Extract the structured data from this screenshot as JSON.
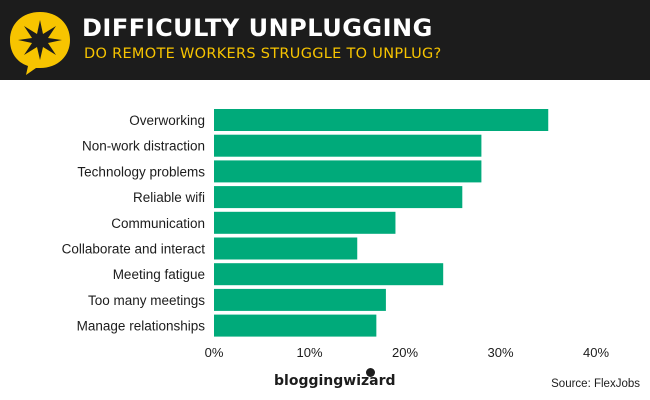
{
  "header": {
    "title": "DIFFICULTY UNPLUGGING",
    "subtitle": "DO REMOTE WORKERS STRUGGLE TO UNPLUG?",
    "badge_icon": "star-burst-speech-bubble-icon"
  },
  "chart_data": {
    "type": "bar",
    "orientation": "horizontal",
    "categories": [
      "Overworking",
      "Non-work distraction",
      "Technology problems",
      "Reliable wifi",
      "Communication",
      "Collaborate and interact",
      "Meeting fatigue",
      "Too many meetings",
      "Manage relationships"
    ],
    "values": [
      35,
      28,
      28,
      26,
      19,
      15,
      24,
      18,
      17
    ],
    "xlim": [
      0,
      40
    ],
    "xticks": [
      "0%",
      "10%",
      "20%",
      "30%",
      "40%"
    ],
    "grid": false,
    "legend": "none"
  },
  "footer": {
    "brand": "bloggingwizard",
    "source": "Source: FlexJobs"
  },
  "colors": {
    "header_bg": "#1c1c1c",
    "accent_yellow": "#f7c400",
    "bar": "#00aa7a",
    "text": "#1c1c1c"
  }
}
